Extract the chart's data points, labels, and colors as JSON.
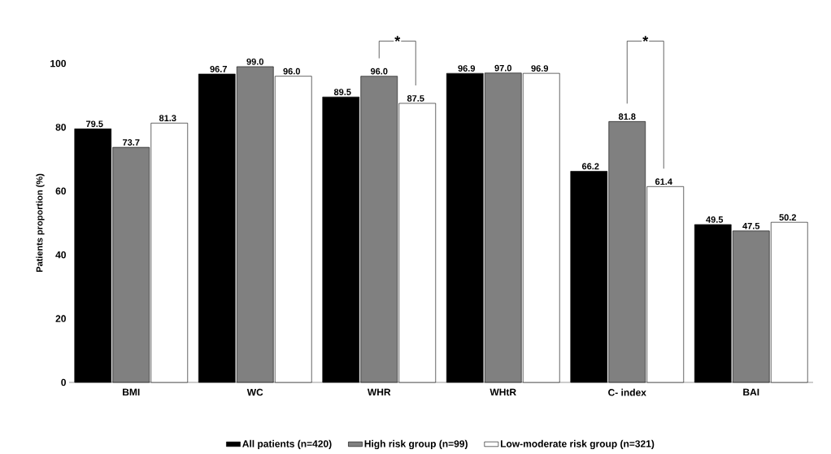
{
  "chart_data": {
    "type": "bar",
    "ylabel": "Patients proportion (%)",
    "categories": [
      "BMI",
      "WC",
      "WHR",
      "WHtR",
      "C- index",
      "BAI"
    ],
    "series": [
      {
        "name": "All patients (n=420)",
        "color": "#000000",
        "values": [
          79.5,
          96.7,
          89.5,
          96.9,
          66.2,
          49.5
        ]
      },
      {
        "name": "High risk group (n=99)",
        "color": "#808080",
        "values": [
          73.7,
          99.0,
          96.0,
          97.0,
          81.8,
          47.5
        ]
      },
      {
        "name": "Low-moderate risk group (n=321)",
        "color": "#ffffff",
        "values": [
          81.3,
          96.0,
          87.5,
          96.9,
          61.4,
          50.2
        ]
      }
    ],
    "ylim": [
      0,
      100
    ],
    "yticks": [
      0,
      20,
      40,
      60,
      80,
      100
    ],
    "value_labels": [
      [
        "79.5",
        "96.7",
        "89.5",
        "96.9",
        "66.2",
        "49.5"
      ],
      [
        "73.7",
        "99.0",
        "96.0",
        "97.0",
        "81.8",
        "47.5"
      ],
      [
        "81.3",
        "96.0",
        "87.5",
        "96.9",
        "61.4",
        "50.2"
      ]
    ],
    "annotations": [
      "*",
      "*"
    ],
    "legend": "bottom"
  }
}
